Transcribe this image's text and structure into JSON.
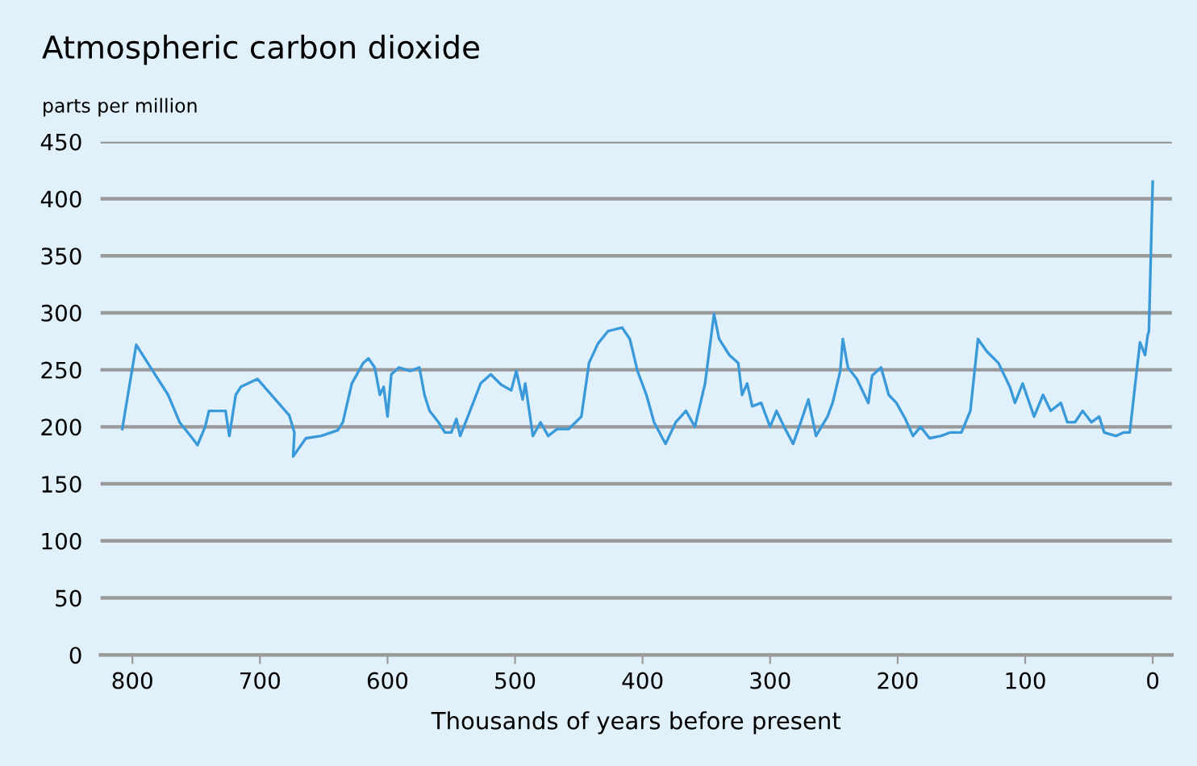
{
  "chart_data": {
    "type": "line",
    "title": "Atmospheric carbon dioxide",
    "ylabel": "parts per million",
    "xlabel": "Thousands of years before present",
    "xlim": [
      825,
      -15
    ],
    "xticks": [
      800,
      700,
      600,
      500,
      400,
      300,
      200,
      100,
      0
    ],
    "ylim": [
      0,
      450
    ],
    "yticks": [
      0,
      50,
      100,
      150,
      200,
      250,
      300,
      350,
      400,
      450
    ],
    "grid": "y",
    "legend": false,
    "marker": "none",
    "line_style": "solid",
    "series": [
      {
        "color": "#3a9ad9",
        "x": [
          808,
          797,
          784,
          772,
          763,
          753,
          749,
          743,
          740,
          727,
          724,
          719,
          715,
          702,
          677,
          673,
          674,
          664,
          652,
          639,
          635,
          628,
          619,
          615,
          610,
          606,
          603,
          600,
          597,
          591,
          582,
          575,
          571,
          567,
          560,
          555,
          550,
          546,
          543,
          537,
          527,
          519,
          511,
          503,
          499,
          494,
          492,
          486,
          480,
          474,
          467,
          458,
          448,
          442,
          435,
          427,
          416,
          410,
          404,
          397,
          391,
          382,
          374,
          366,
          359,
          351,
          344,
          340,
          332,
          325,
          322,
          318,
          314,
          307,
          300,
          295,
          289,
          282,
          276,
          270,
          264,
          255,
          251,
          245,
          243,
          239,
          232,
          223,
          220,
          213,
          207,
          201,
          194,
          188,
          182,
          175,
          166,
          159,
          150,
          143,
          137,
          130,
          121,
          112,
          108,
          102,
          93,
          86,
          80,
          72,
          67,
          61,
          55,
          48,
          42,
          38,
          29,
          23,
          18,
          14,
          10,
          6,
          4,
          3,
          0
        ],
        "values": [
          198,
          272,
          249,
          228,
          204,
          190,
          184,
          200,
          214,
          214,
          192,
          228,
          235,
          242,
          210,
          195,
          174,
          190,
          192,
          197,
          204,
          238,
          256,
          260,
          252,
          228,
          235,
          209,
          246,
          252,
          249,
          252,
          228,
          214,
          204,
          195,
          195,
          207,
          192,
          209,
          238,
          246,
          237,
          232,
          249,
          224,
          238,
          192,
          204,
          192,
          198,
          198,
          209,
          256,
          273,
          284,
          287,
          277,
          249,
          228,
          204,
          185,
          204,
          214,
          200,
          238,
          299,
          277,
          263,
          256,
          228,
          238,
          218,
          221,
          200,
          214,
          200,
          185,
          204,
          224,
          192,
          209,
          221,
          249,
          277,
          252,
          242,
          221,
          245,
          252,
          228,
          221,
          207,
          192,
          200,
          190,
          192,
          195,
          195,
          214,
          277,
          266,
          256,
          235,
          221,
          238,
          209,
          228,
          214,
          221,
          204,
          204,
          214,
          204,
          209,
          195,
          192,
          195,
          195,
          235,
          274,
          263,
          280,
          284,
          415
        ]
      }
    ]
  }
}
